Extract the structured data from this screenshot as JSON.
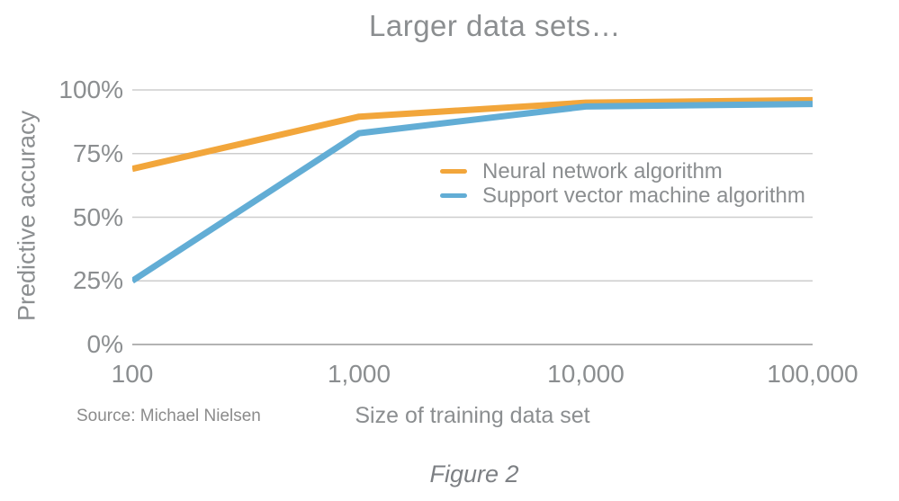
{
  "title": "Larger data sets…",
  "source": "Source: Michael Nielsen",
  "caption": "Figure 2",
  "colors": {
    "neural_line": "#F2A63B",
    "svm_line": "#62ADD5",
    "gridline": "#CDCDCD",
    "axis_line": "#9A9A9A",
    "text_gray": "#8B8E90",
    "caption_gray": "#7D8084",
    "background": "#FFFFFF"
  },
  "chart_data": {
    "type": "line",
    "title": "Larger data sets…",
    "xlabel": "Size of training data set",
    "ylabel": "Predictive accuracy",
    "x_scale": "logarithmic-categorical",
    "categories": [
      "100",
      "1,000",
      "10,000",
      "100,000"
    ],
    "x_values": [
      100,
      1000,
      10000,
      100000
    ],
    "yticks": [
      {
        "label": "0%",
        "value": 0
      },
      {
        "label": "25%",
        "value": 25
      },
      {
        "label": "50%",
        "value": 50
      },
      {
        "label": "75%",
        "value": 75
      },
      {
        "label": "100%",
        "value": 100
      }
    ],
    "ylim": [
      0,
      100
    ],
    "grid": "horizontal",
    "legend_position": "inside-center-right",
    "series": [
      {
        "name": "Neural network algorithm",
        "color": "#F2A63B",
        "values": [
          69,
          89.5,
          95,
          96
        ]
      },
      {
        "name": "Support vector machine algorithm",
        "color": "#62ADD5",
        "values": [
          25,
          83,
          93.5,
          94.5
        ]
      }
    ]
  }
}
